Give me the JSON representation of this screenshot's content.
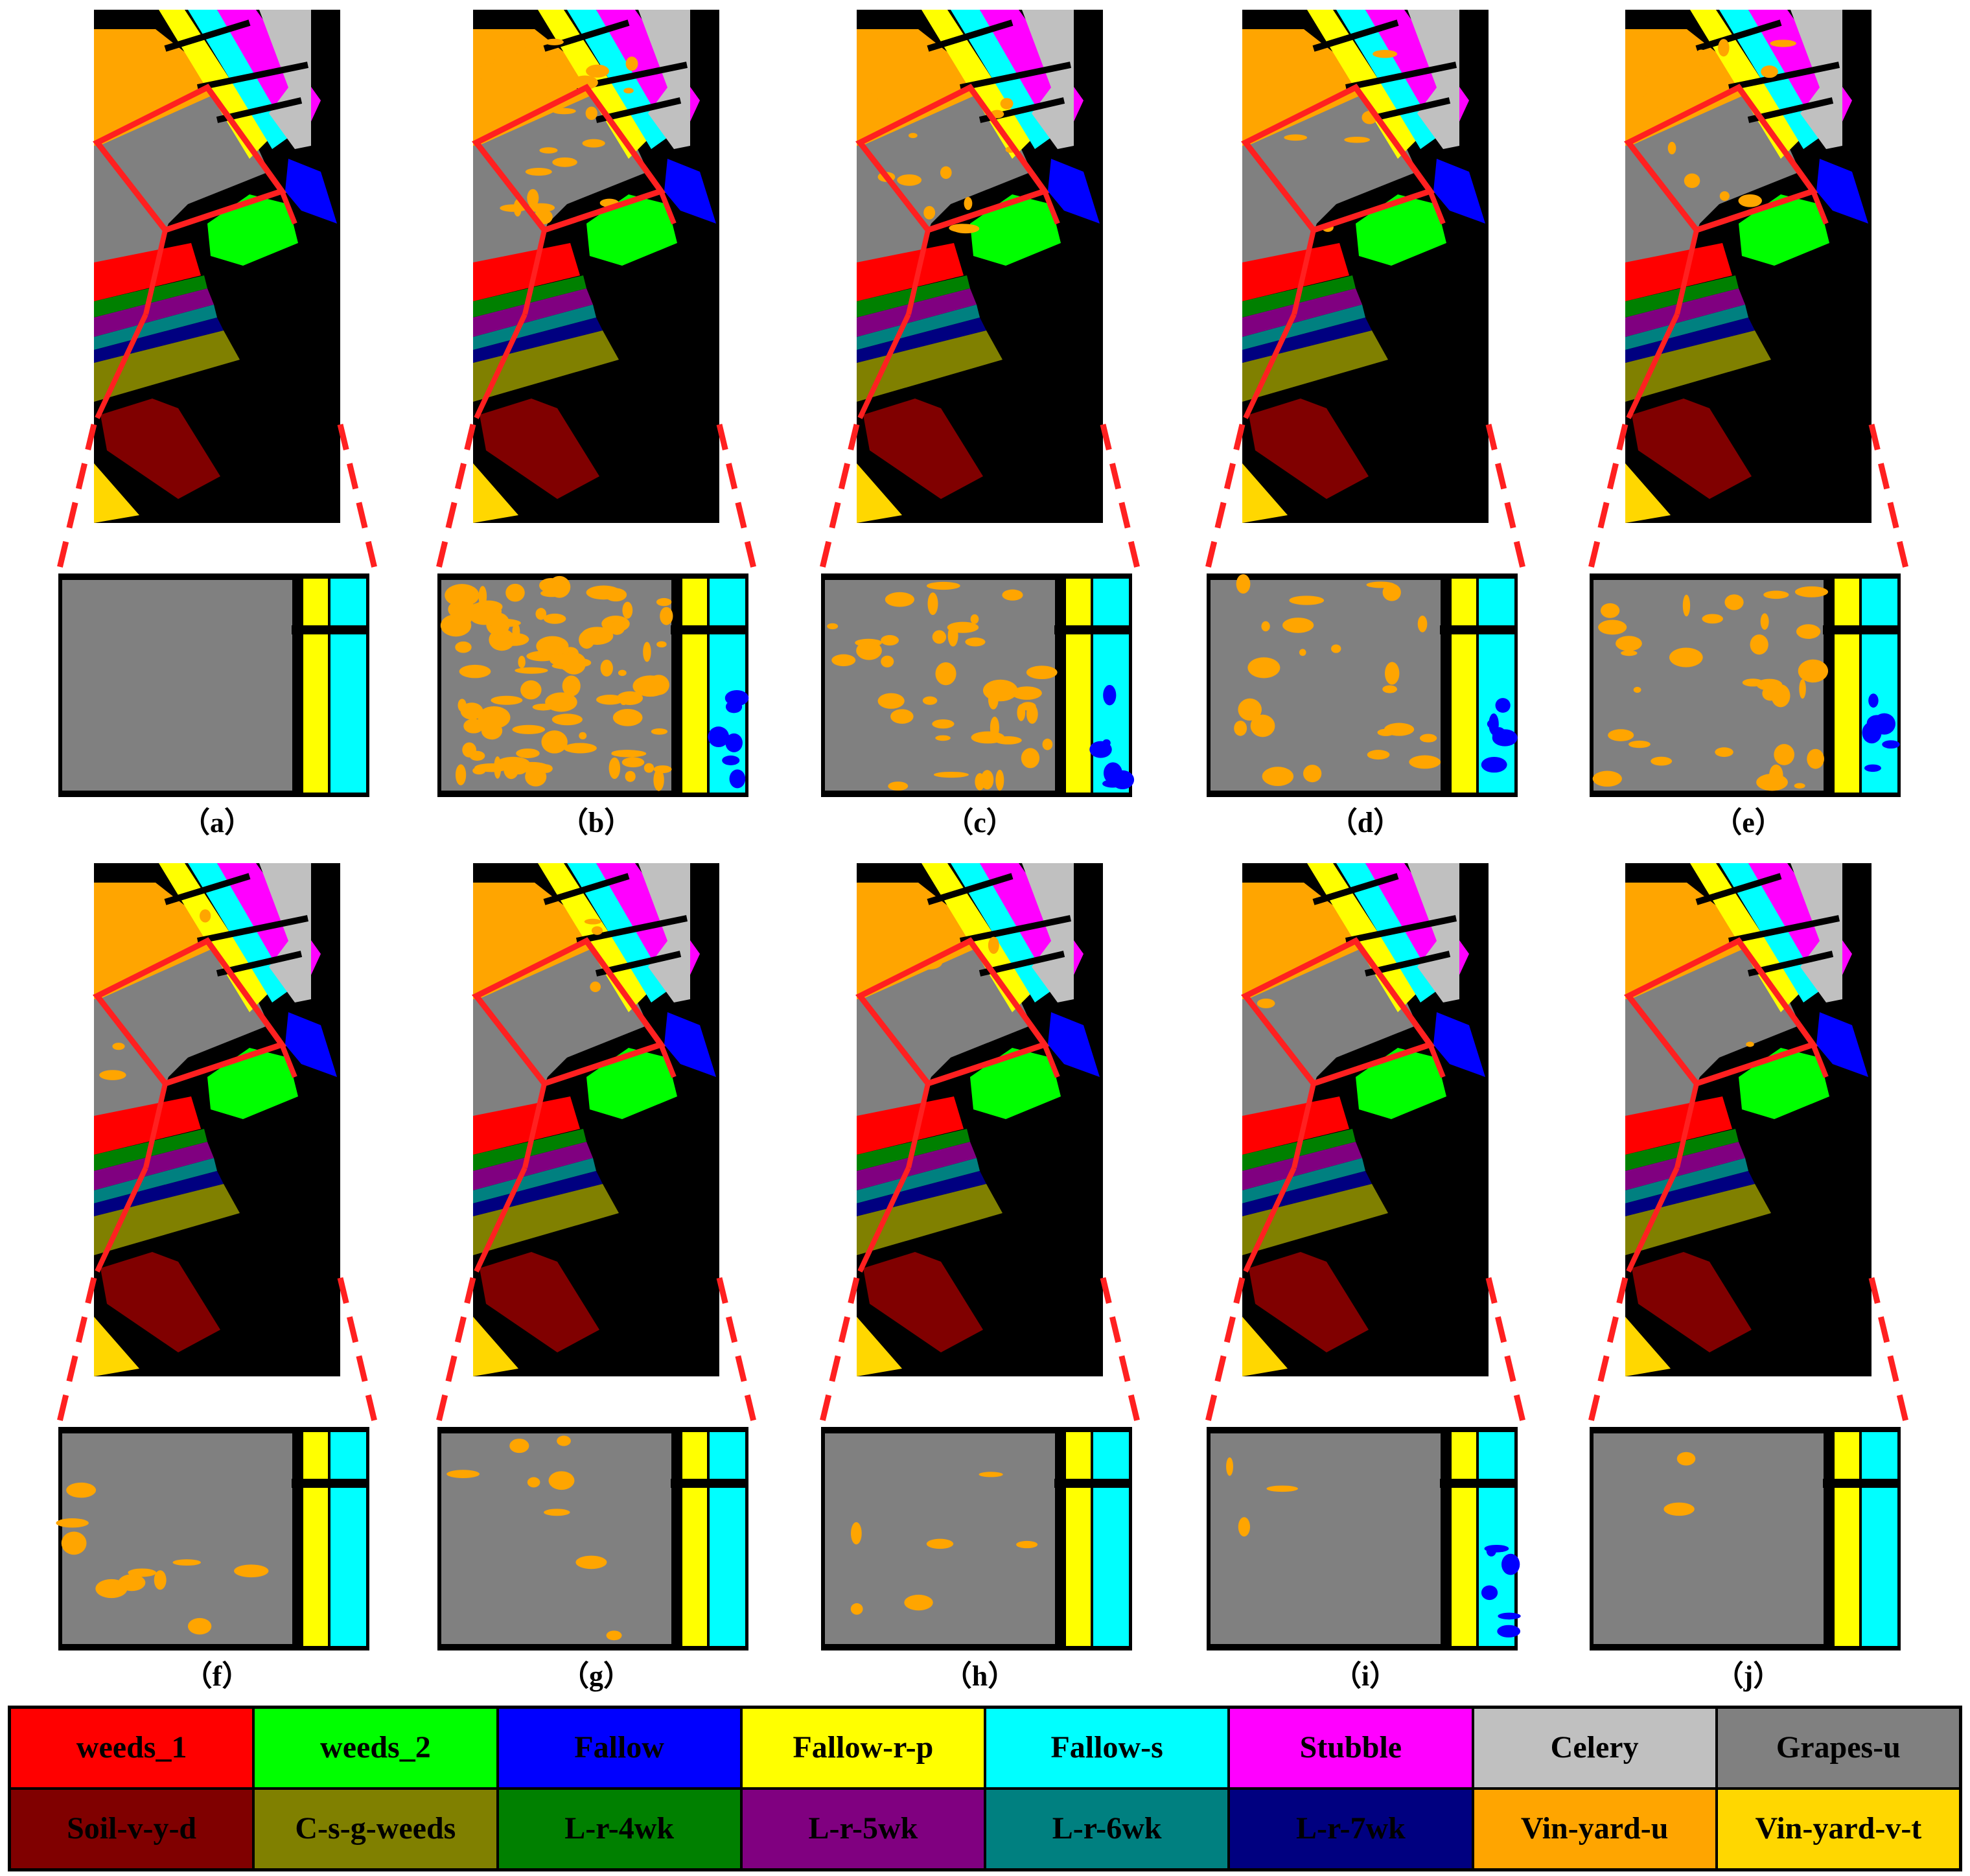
{
  "panels": [
    {
      "label": "（a）",
      "vineyard_patches": 0,
      "fallow_noise": 0
    },
    {
      "label": "（b）",
      "vineyard_patches": 90,
      "fallow_noise": 1
    },
    {
      "label": "（c）",
      "vineyard_patches": 38,
      "fallow_noise": 1
    },
    {
      "label": "（d）",
      "vineyard_patches": 22,
      "fallow_noise": 1
    },
    {
      "label": "（e）",
      "vineyard_patches": 30,
      "fallow_noise": 1
    },
    {
      "label": "（f）",
      "vineyard_patches": 10,
      "fallow_noise": 0
    },
    {
      "label": "（g）",
      "vineyard_patches": 8,
      "fallow_noise": 0
    },
    {
      "label": "（h）",
      "vineyard_patches": 6,
      "fallow_noise": 0
    },
    {
      "label": "（i）",
      "vineyard_patches": 3,
      "fallow_noise": 1
    },
    {
      "label": "（j）",
      "vineyard_patches": 2,
      "fallow_noise": 0
    }
  ],
  "legend": [
    {
      "label": "weeds_1",
      "color": "#ff0000"
    },
    {
      "label": "weeds_2",
      "color": "#00ff00"
    },
    {
      "label": "Fallow",
      "color": "#0000ff"
    },
    {
      "label": "Fallow-r-p",
      "color": "#ffff00"
    },
    {
      "label": "Fallow-s",
      "color": "#00ffff"
    },
    {
      "label": "Stubble",
      "color": "#ff00ff"
    },
    {
      "label": "Celery",
      "color": "#c0c0c0"
    },
    {
      "label": "Grapes-u",
      "color": "#808080"
    },
    {
      "label": "Soil-v-y-d",
      "color": "#800000"
    },
    {
      "label": "C-s-g-weeds",
      "color": "#808000"
    },
    {
      "label": "L-r-4wk",
      "color": "#008000"
    },
    {
      "label": "L-r-5wk",
      "color": "#800080"
    },
    {
      "label": "L-r-6wk",
      "color": "#008080"
    },
    {
      "label": "L-r-7wk",
      "color": "#000080"
    },
    {
      "label": "Vin-yard-u",
      "color": "#ffa500"
    },
    {
      "label": "Vin-yard-v-t",
      "color": "#ffd700"
    }
  ],
  "colors": {
    "background": "#000000",
    "zoom_box": "#ff2020"
  }
}
